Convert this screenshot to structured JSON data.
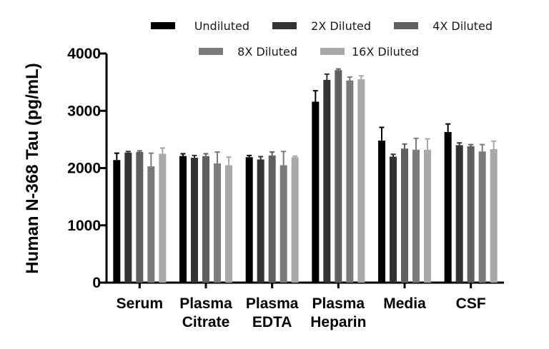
{
  "chart_data": {
    "type": "bar",
    "title": "",
    "xlabel": "",
    "ylabel": "Human N-368 Tau (pg/mL)",
    "ylim": [
      0,
      4000
    ],
    "yticks": [
      0,
      1000,
      2000,
      3000,
      4000
    ],
    "yticks_text": [
      "0",
      "1000",
      "2000",
      "3000",
      "4000"
    ],
    "grid": false,
    "legend_position": "top",
    "categories": [
      [
        "Serum"
      ],
      [
        "Plasma",
        "Citrate"
      ],
      [
        "Plasma",
        "EDTA"
      ],
      [
        "Plasma",
        "Heparin"
      ],
      [
        "Media"
      ],
      [
        "CSF"
      ]
    ],
    "series": [
      {
        "name": "Undiluted",
        "color": "#000000",
        "values": [
          2140,
          2210,
          2190,
          3160,
          2480,
          2630
        ],
        "errors": [
          120,
          40,
          30,
          190,
          230,
          140
        ]
      },
      {
        "name": "2X Diluted",
        "color": "#333333",
        "values": [
          2270,
          2180,
          2150,
          3540,
          2200,
          2400
        ],
        "errors": [
          20,
          40,
          50,
          100,
          40,
          40
        ]
      },
      {
        "name": "4X Diluted",
        "color": "#5f5f5f",
        "values": [
          2280,
          2210,
          2220,
          3710,
          2340,
          2380
        ],
        "errors": [
          20,
          40,
          60,
          20,
          80,
          30
        ]
      },
      {
        "name": "8X Diluted",
        "color": "#7a7a7a",
        "values": [
          2030,
          2080,
          2050,
          3530,
          2320,
          2290
        ],
        "errors": [
          230,
          200,
          240,
          60,
          200,
          120
        ]
      },
      {
        "name": "16X Diluted",
        "color": "#a8a8a8",
        "values": [
          2250,
          2050,
          2190,
          3550,
          2320,
          2330
        ],
        "errors": [
          100,
          140,
          20,
          60,
          190,
          140
        ]
      }
    ]
  }
}
